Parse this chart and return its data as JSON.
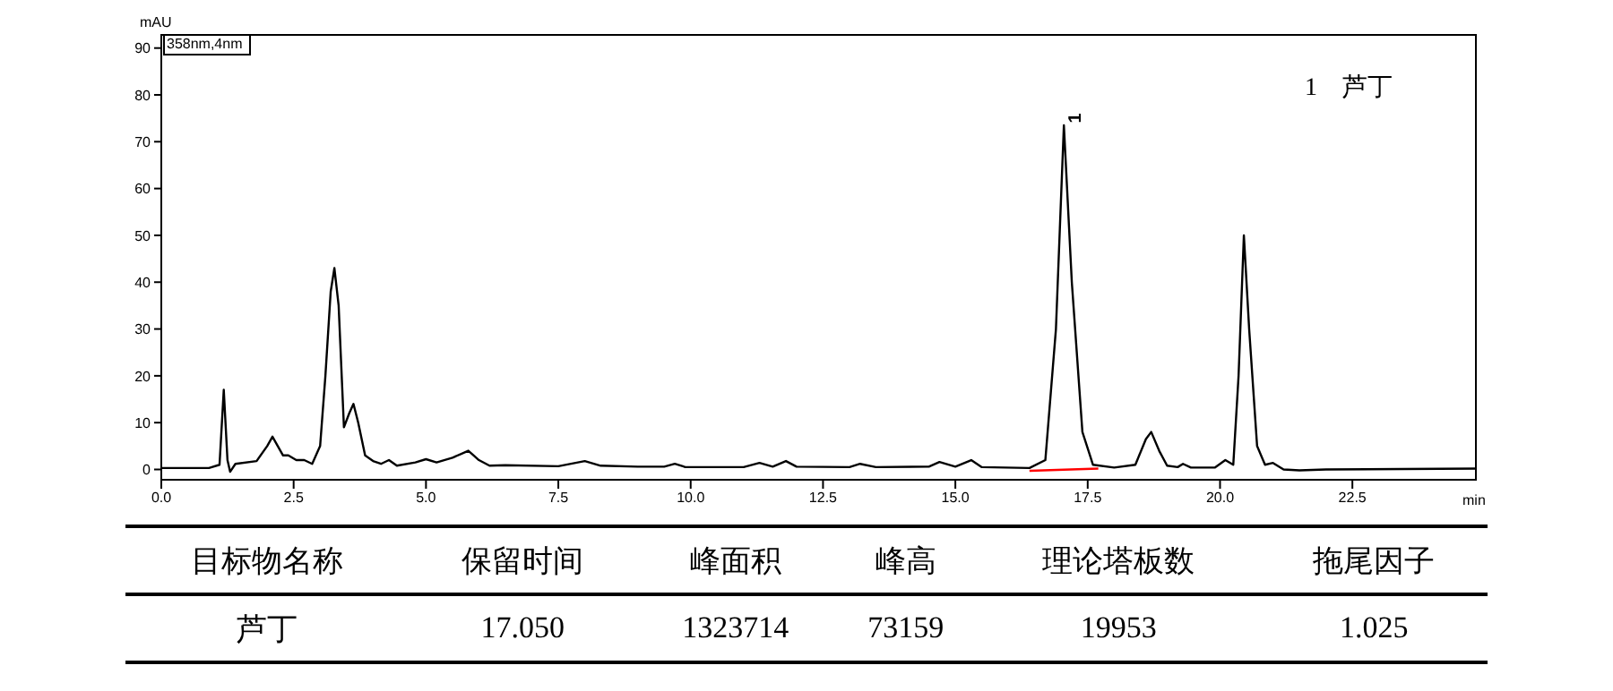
{
  "chart_data": {
    "type": "line",
    "ylabel": "mAU",
    "xlabel": "min",
    "xlim": [
      0,
      24.85
    ],
    "xticks": [
      {
        "value": 0,
        "label": "0.0"
      },
      {
        "value": 2.5,
        "label": "2.5"
      },
      {
        "value": 5,
        "label": "5.0"
      },
      {
        "value": 7.5,
        "label": "7.5"
      },
      {
        "value": 10,
        "label": "10.0"
      },
      {
        "value": 12.5,
        "label": "12.5"
      },
      {
        "value": 15,
        "label": "15.0"
      },
      {
        "value": 17.5,
        "label": "17.5"
      },
      {
        "value": 20,
        "label": "20.0"
      },
      {
        "value": 22.5,
        "label": "22.5"
      }
    ],
    "ylim": [
      -2.2,
      93
    ],
    "yticks": [
      0,
      10,
      20,
      30,
      40,
      50,
      60,
      70,
      80,
      90
    ],
    "marker": "none",
    "line_style": "solid",
    "series": [
      {
        "color": "#000000",
        "x": [
          0,
          0.9,
          1.1,
          1.18,
          1.25,
          1.3,
          1.4,
          1.8,
          2.0,
          2.1,
          2.2,
          2.3,
          2.4,
          2.55,
          2.7,
          2.85,
          3.0,
          3.1,
          3.2,
          3.27,
          3.35,
          3.45,
          3.55,
          3.63,
          3.72,
          3.85,
          4.0,
          4.15,
          4.3,
          4.45,
          4.8,
          5.0,
          5.2,
          5.5,
          5.8,
          6.0,
          6.2,
          6.5,
          7.5,
          8.0,
          8.3,
          9.0,
          9.5,
          9.7,
          9.9,
          11.0,
          11.3,
          11.55,
          11.8,
          12.0,
          13.0,
          13.2,
          13.5,
          14.5,
          14.7,
          15.0,
          15.3,
          15.5,
          16.4,
          16.7,
          16.9,
          17.05,
          17.2,
          17.4,
          17.6,
          18.0,
          18.4,
          18.6,
          18.7,
          18.85,
          19.0,
          19.2,
          19.3,
          19.45,
          19.9,
          20.1,
          20.25,
          20.35,
          20.45,
          20.55,
          20.7,
          20.85,
          21.0,
          21.2,
          21.5,
          22.0,
          24.85
        ],
        "values": [
          0.3,
          0.3,
          1,
          17,
          2,
          -0.5,
          1.2,
          1.8,
          5,
          7,
          5,
          3,
          3,
          2,
          2,
          1.2,
          5,
          20,
          38,
          43,
          35,
          9,
          12,
          14,
          10,
          3,
          1.8,
          1.2,
          2,
          0.8,
          1.5,
          2.2,
          1.5,
          2.5,
          4,
          2,
          0.8,
          0.9,
          0.7,
          1.8,
          0.8,
          0.6,
          0.6,
          1.2,
          0.5,
          0.5,
          1.4,
          0.6,
          1.8,
          0.6,
          0.5,
          1.2,
          0.5,
          0.6,
          1.6,
          0.6,
          2,
          0.5,
          0.3,
          2,
          30,
          73.5,
          40,
          8,
          1,
          0.4,
          1,
          6.5,
          8,
          4,
          0.8,
          0.5,
          1.2,
          0.4,
          0.4,
          2,
          1,
          20,
          50,
          30,
          5,
          1,
          1.4,
          0,
          -0.2,
          0,
          0.2
        ]
      },
      {
        "color": "#ff0000",
        "x": [
          16.4,
          17.7
        ],
        "values": [
          -0.3,
          0.2
        ]
      }
    ],
    "annotations": [
      "358nm,4nm",
      "1　芦丁",
      {
        "text": "1",
        "x": 17.05,
        "y": 73.5
      },
      "目标物名称",
      "保留时间",
      "峰面积",
      "峰高",
      "理论塔板数",
      "拖尾因子",
      "芦丁",
      "17.050",
      "1323714",
      "73159",
      "19953",
      "1.025"
    ]
  }
}
